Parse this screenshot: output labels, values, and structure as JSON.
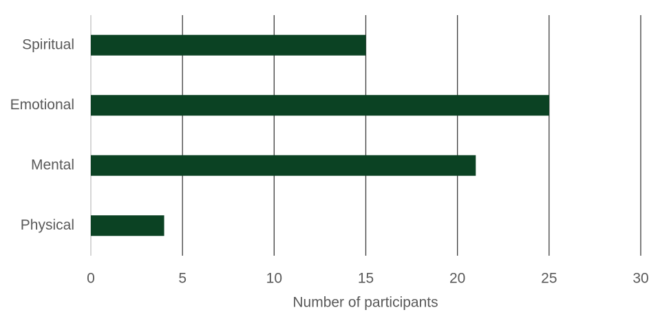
{
  "chart_data": {
    "type": "barh",
    "x_label": "Number of participants",
    "categories": [
      "Spiritual",
      "Emotional",
      "Mental",
      "Physical"
    ],
    "values": [
      15,
      25,
      21,
      4
    ],
    "color": "#0b4223",
    "xlim": [
      0,
      30
    ],
    "xticks": [
      0,
      5,
      10,
      15,
      20,
      25,
      30
    ],
    "grid": true
  }
}
